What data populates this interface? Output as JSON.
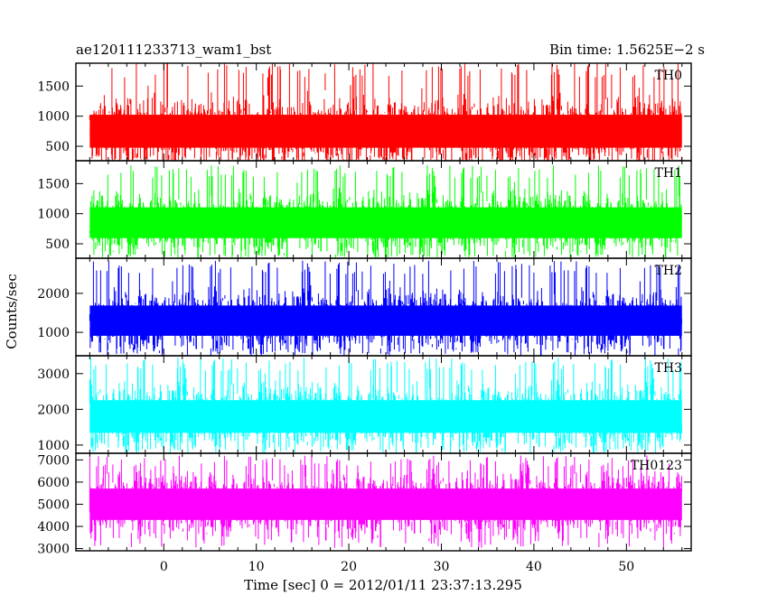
{
  "header": {
    "title": "ae120111233713_wam1_bst",
    "bin_time": "Bin time: 1.5625E−2 s"
  },
  "chart_data": {
    "type": "line",
    "xlabel": "Time [sec] 0 = 2012/01/11 23:37:13.295",
    "ylabel": "Counts/sec",
    "xlim": [
      -9.5,
      57
    ],
    "x_ticks": [
      0,
      10,
      20,
      30,
      40,
      50
    ],
    "x_data_range": [
      -8,
      56
    ],
    "panels": [
      {
        "label": "TH0",
        "color": "#ff0000",
        "ylim": [
          260,
          1880
        ],
        "y_ticks": [
          500,
          1000,
          1500
        ],
        "mean": 750,
        "lower_envelope": 300,
        "upper_envelope": 1500,
        "peak": 1800
      },
      {
        "label": "TH1",
        "color": "#00ff00",
        "ylim": [
          260,
          1880
        ],
        "y_ticks": [
          500,
          1000,
          1500
        ],
        "mean": 850,
        "lower_envelope": 330,
        "upper_envelope": 1450,
        "peak": 1720
      },
      {
        "label": "TH2",
        "color": "#0000ff",
        "ylim": [
          400,
          2900
        ],
        "y_ticks": [
          1000,
          2000
        ],
        "mean": 1300,
        "lower_envelope": 600,
        "upper_envelope": 2300,
        "peak": 2700
      },
      {
        "label": "TH3",
        "color": "#00ffff",
        "ylim": [
          770,
          3500
        ],
        "y_ticks": [
          1000,
          2000,
          3000
        ],
        "mean": 1800,
        "lower_envelope": 1000,
        "upper_envelope": 3000,
        "peak": 3300
      },
      {
        "label": "TH0123",
        "color": "#ff00ff",
        "ylim": [
          2900,
          7300
        ],
        "y_ticks": [
          3000,
          4000,
          5000,
          6000,
          7000
        ],
        "mean": 5000,
        "lower_envelope": 3500,
        "upper_envelope": 6600,
        "peak": 7000
      }
    ]
  }
}
